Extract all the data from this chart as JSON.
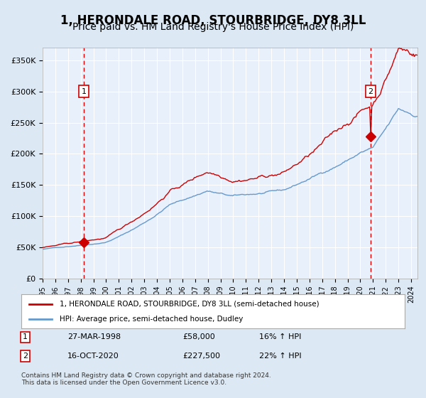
{
  "title": "1, HERONDALE ROAD, STOURBRIDGE, DY8 3LL",
  "subtitle": "Price paid vs. HM Land Registry's House Price Index (HPI)",
  "title_fontsize": 12,
  "subtitle_fontsize": 10,
  "red_label": "1, HERONDALE ROAD, STOURBRIDGE, DY8 3LL (semi-detached house)",
  "blue_label": "HPI: Average price, semi-detached house, Dudley",
  "footer": "Contains HM Land Registry data © Crown copyright and database right 2024.\nThis data is licensed under the Open Government Licence v3.0.",
  "annotation1_date": "27-MAR-1998",
  "annotation1_price": "£58,000",
  "annotation1_hpi": "16% ↑ HPI",
  "annotation2_date": "16-OCT-2020",
  "annotation2_price": "£227,500",
  "annotation2_hpi": "22% ↑ HPI",
  "bg_color": "#dce9f5",
  "plot_bg_color": "#e8f0fb",
  "red_color": "#cc0000",
  "blue_color": "#6699cc",
  "grid_color": "#ffffff",
  "marker_color": "#cc0000",
  "vline_color": "#dd0000",
  "box_color": "#cc0000",
  "ylim": [
    0,
    370000
  ],
  "xlim_start": 1995.0,
  "xlim_end": 2024.5
}
